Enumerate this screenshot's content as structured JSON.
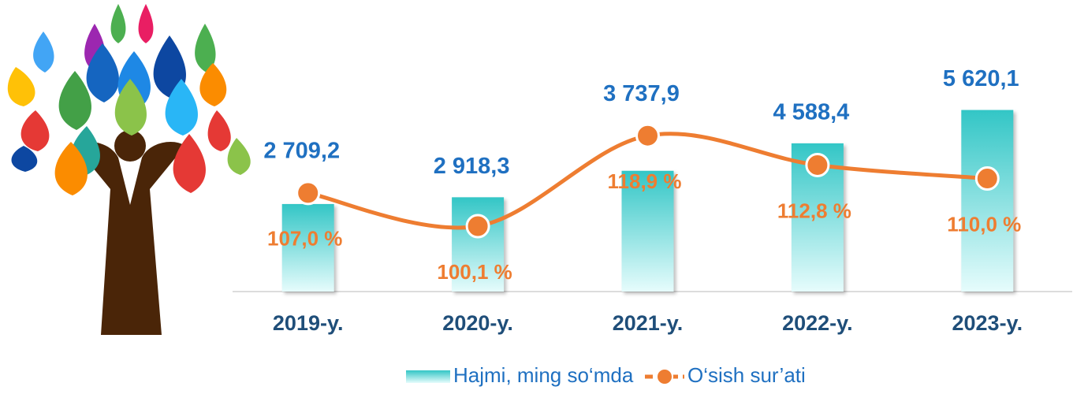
{
  "chart_data": {
    "type": "bar-line",
    "categories": [
      "2019-y.",
      "2020-y.",
      "2021-y.",
      "2022-y.",
      "2023-y."
    ],
    "series": [
      {
        "name": "Hajmi, ming so‘mda",
        "type": "bar",
        "color": "#33c6c6",
        "values": [
          2709.2,
          2918.3,
          3737.9,
          4588.4,
          5620.1
        ],
        "value_labels": [
          "2 709,2",
          "2 918,3",
          "3 737,9",
          "4 588,4",
          "5 620,1"
        ]
      },
      {
        "name": "O‘sish sur’ati",
        "type": "line",
        "axis": "y2",
        "color": "#ee7d31",
        "values": [
          107.0,
          100.1,
          118.9,
          112.8,
          110.0
        ],
        "value_labels": [
          "107,0 %",
          "100,1 %",
          "118,9 %",
          "112,8 %",
          "110,0 %"
        ]
      }
    ],
    "ylim": [
      0,
      6000
    ],
    "y2lim": [
      86.5,
      126.8
    ],
    "legend": "bottom"
  }
}
